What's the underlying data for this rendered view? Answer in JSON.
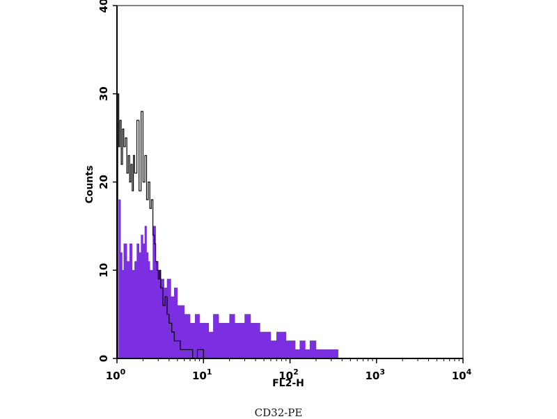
{
  "caption": "CD32-PE",
  "chart_data": {
    "type": "area",
    "xlabel": "FL2-H",
    "ylabel": "Counts",
    "xscale": "log",
    "xlim": [
      1,
      10000
    ],
    "ylim": [
      0,
      40
    ],
    "x_ticks": [
      {
        "value": 1,
        "base": "10",
        "exp": "0"
      },
      {
        "value": 10,
        "base": "10",
        "exp": "1"
      },
      {
        "value": 100,
        "base": "10",
        "exp": "2"
      },
      {
        "value": 1000,
        "base": "10",
        "exp": "3"
      },
      {
        "value": 10000,
        "base": "10",
        "exp": "4"
      }
    ],
    "y_ticks": [
      0,
      10,
      20,
      30,
      40
    ],
    "colors": {
      "filled": "#7b2fe0",
      "outline": "#000000",
      "axes": "#000000"
    },
    "series": [
      {
        "style": "filled",
        "x": [
          1.0,
          1.05,
          1.1,
          1.15,
          1.2,
          1.3,
          1.4,
          1.5,
          1.6,
          1.7,
          1.8,
          1.9,
          2.0,
          2.1,
          2.2,
          2.3,
          2.4,
          2.6,
          2.8,
          3.0,
          3.2,
          3.5,
          3.8,
          4.2,
          4.6,
          5.0,
          5.5,
          6.0,
          6.5,
          7.0,
          8.0,
          9.0,
          10.0,
          11.5,
          13.0,
          15.0,
          17.0,
          20.0,
          23.0,
          26.0,
          30.0,
          35.0,
          40.0,
          45.0,
          50.0,
          55.0,
          60.0,
          70.0,
          80.0,
          90.0,
          100.0,
          115.0,
          130.0,
          150.0,
          170.0,
          200.0,
          230.0,
          260.0,
          300.0,
          340.0,
          360.0,
          10000.0
        ],
        "y": [
          0,
          18,
          12,
          10,
          13,
          11,
          13,
          10,
          11,
          13,
          12,
          14,
          13,
          15,
          12,
          11,
          10,
          15,
          11,
          10,
          9,
          8,
          9,
          7,
          8,
          6,
          6,
          5,
          5,
          4,
          5,
          4,
          4,
          3,
          5,
          4,
          4,
          5,
          4,
          4,
          5,
          4,
          4,
          3,
          3,
          3,
          2,
          3,
          3,
          2,
          2,
          1,
          2,
          1,
          2,
          1,
          1,
          1,
          1,
          1,
          0,
          0
        ]
      },
      {
        "style": "outline",
        "x": [
          1.0,
          1.02,
          1.05,
          1.08,
          1.12,
          1.16,
          1.2,
          1.25,
          1.3,
          1.35,
          1.4,
          1.45,
          1.5,
          1.55,
          1.6,
          1.7,
          1.8,
          1.9,
          2.0,
          2.1,
          2.2,
          2.3,
          2.4,
          2.5,
          2.6,
          2.7,
          2.8,
          2.9,
          3.0,
          3.1,
          3.2,
          3.4,
          3.6,
          3.8,
          4.0,
          4.3,
          4.6,
          5.0,
          5.4,
          6.0,
          6.6,
          7.5,
          8.5,
          10.0,
          10000.0
        ],
        "y": [
          0,
          30,
          24,
          27,
          22,
          26,
          24,
          25,
          21,
          23,
          20,
          22,
          19,
          23,
          21,
          27,
          19,
          28,
          20,
          23,
          18,
          20,
          17,
          18,
          14,
          13,
          11,
          10,
          9,
          10,
          8,
          6,
          7,
          5,
          4,
          3,
          2,
          2,
          1,
          1,
          1,
          0,
          1,
          0,
          0
        ]
      }
    ]
  }
}
